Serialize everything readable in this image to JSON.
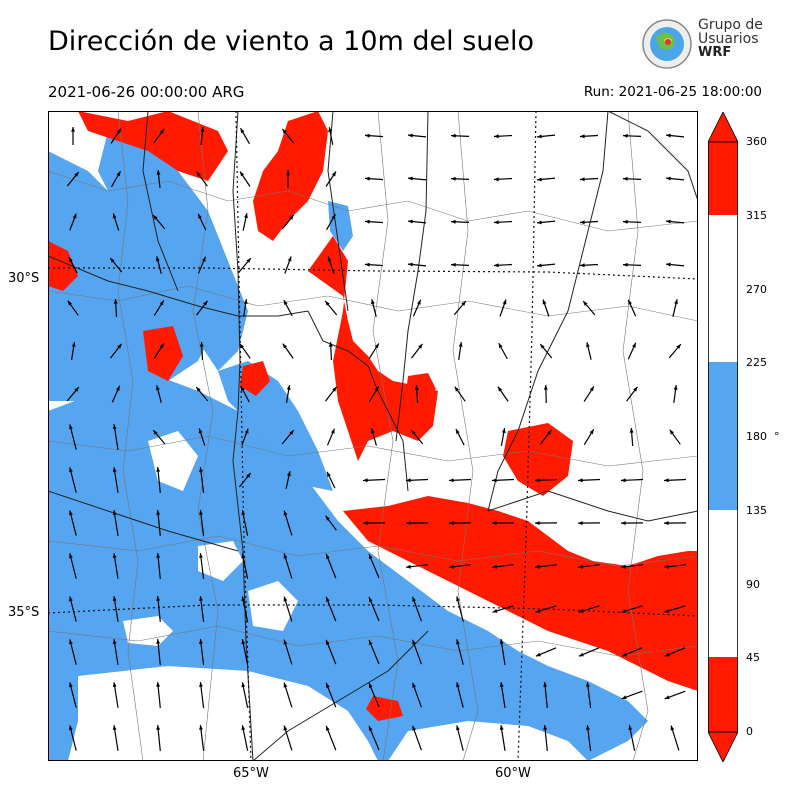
{
  "header": {
    "title": "Dirección de viento a 10m del suelo",
    "valid_time": "2021-06-26 00:00:00 ARG",
    "run": "Run: 2021-06-25 18:00:00"
  },
  "logo": {
    "line1": "Grupo de",
    "line2": "Usuarios",
    "line3": "WRF"
  },
  "axes": {
    "lat_labels": [
      "30°S",
      "35°S"
    ],
    "lon_labels": [
      "65°W",
      "60°W"
    ]
  },
  "colorbar": {
    "unit": "°",
    "ticks": [
      "0",
      "45",
      "90",
      "135",
      "180",
      "225",
      "270",
      "315",
      "360"
    ],
    "classes": [
      {
        "range": "0-45",
        "color": "#ff1a00"
      },
      {
        "range": "45-135",
        "color": "#ffffff"
      },
      {
        "range": "135-225",
        "color": "#55a5f0"
      },
      {
        "range": "225-315",
        "color": "#ffffff"
      },
      {
        "range": "315-360",
        "color": "#ff1a00"
      }
    ]
  },
  "colors": {
    "red": "#ff1a00",
    "blue": "#55a5f0",
    "white": "#ffffff"
  }
}
